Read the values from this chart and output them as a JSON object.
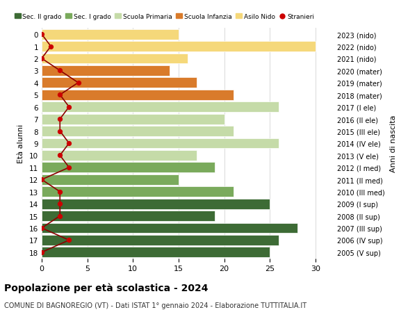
{
  "ages": [
    0,
    1,
    2,
    3,
    4,
    5,
    6,
    7,
    8,
    9,
    10,
    11,
    12,
    13,
    14,
    15,
    16,
    17,
    18
  ],
  "right_labels": [
    "2023 (nido)",
    "2022 (nido)",
    "2021 (nido)",
    "2020 (mater)",
    "2019 (mater)",
    "2018 (mater)",
    "2017 (I ele)",
    "2016 (II ele)",
    "2015 (III ele)",
    "2014 (IV ele)",
    "2013 (V ele)",
    "2012 (I med)",
    "2011 (II med)",
    "2010 (III med)",
    "2009 (I sup)",
    "2008 (II sup)",
    "2007 (III sup)",
    "2006 (IV sup)",
    "2005 (V sup)"
  ],
  "bar_values": [
    15,
    30,
    16,
    14,
    17,
    21,
    26,
    20,
    21,
    26,
    17,
    19,
    15,
    21,
    25,
    19,
    28,
    26,
    25
  ],
  "bar_colors": [
    "#f5d87a",
    "#f5d87a",
    "#f5d87a",
    "#d97b2b",
    "#d97b2b",
    "#d97b2b",
    "#c5dba8",
    "#c5dba8",
    "#c5dba8",
    "#c5dba8",
    "#c5dba8",
    "#7aaa5c",
    "#7aaa5c",
    "#7aaa5c",
    "#3d6b35",
    "#3d6b35",
    "#3d6b35",
    "#3d6b35",
    "#3d6b35"
  ],
  "stranieri_values": [
    0,
    1,
    0,
    2,
    4,
    2,
    3,
    2,
    2,
    3,
    2,
    3,
    0,
    2,
    2,
    2,
    0,
    3,
    0
  ],
  "title_main": "Popolazione per età scolastica - 2024",
  "title_sub": "COMUNE DI BAGNOREGIO (VT) - Dati ISTAT 1° gennaio 2024 - Elaborazione TUTTITALIA.IT",
  "ylabel_left": "Età alunni",
  "ylabel_right": "Anni di nascita",
  "xlim": [
    0,
    32
  ],
  "xticks": [
    0,
    5,
    10,
    15,
    20,
    25,
    30
  ],
  "legend_labels": [
    "Sec. II grado",
    "Sec. I grado",
    "Scuola Primaria",
    "Scuola Infanzia",
    "Asilo Nido",
    "Stranieri"
  ],
  "legend_colors": [
    "#3d6b35",
    "#7aaa5c",
    "#c5dba8",
    "#d97b2b",
    "#f5d87a",
    "#cc0000"
  ],
  "bg_color": "#ffffff",
  "grid_color": "#dddddd",
  "bar_height": 0.85
}
